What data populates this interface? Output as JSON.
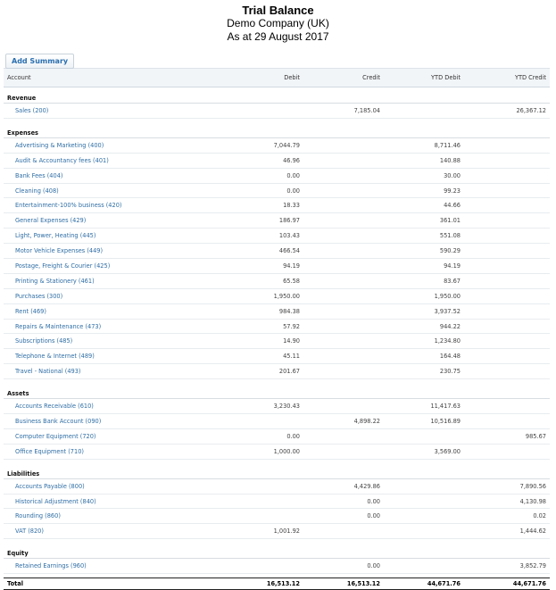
{
  "report": {
    "title": "Trial Balance",
    "company": "Demo Company (UK)",
    "date": "As at 29 August 2017"
  },
  "toolbar": {
    "add_summary_label": "Add Summary"
  },
  "columns": [
    "Account",
    "Debit",
    "Credit",
    "YTD Debit",
    "YTD Credit"
  ],
  "sections": [
    {
      "name": "Revenue",
      "rows": [
        {
          "account": "Sales (200)",
          "debit": "",
          "credit": "7,185.04",
          "ytd_debit": "",
          "ytd_credit": "26,367.12"
        }
      ]
    },
    {
      "name": "Expenses",
      "rows": [
        {
          "account": "Advertising & Marketing (400)",
          "debit": "7,044.79",
          "credit": "",
          "ytd_debit": "8,711.46",
          "ytd_credit": ""
        },
        {
          "account": "Audit & Accountancy fees (401)",
          "debit": "46.96",
          "credit": "",
          "ytd_debit": "140.88",
          "ytd_credit": ""
        },
        {
          "account": "Bank Fees (404)",
          "debit": "0.00",
          "credit": "",
          "ytd_debit": "30.00",
          "ytd_credit": ""
        },
        {
          "account": "Cleaning (408)",
          "debit": "0.00",
          "credit": "",
          "ytd_debit": "99.23",
          "ytd_credit": ""
        },
        {
          "account": "Entertainment-100% business (420)",
          "debit": "18.33",
          "credit": "",
          "ytd_debit": "44.66",
          "ytd_credit": ""
        },
        {
          "account": "General Expenses (429)",
          "debit": "186.97",
          "credit": "",
          "ytd_debit": "361.01",
          "ytd_credit": ""
        },
        {
          "account": "Light, Power, Heating (445)",
          "debit": "103.43",
          "credit": "",
          "ytd_debit": "551.08",
          "ytd_credit": ""
        },
        {
          "account": "Motor Vehicle Expenses (449)",
          "debit": "466.54",
          "credit": "",
          "ytd_debit": "590.29",
          "ytd_credit": ""
        },
        {
          "account": "Postage, Freight & Courier (425)",
          "debit": "94.19",
          "credit": "",
          "ytd_debit": "94.19",
          "ytd_credit": ""
        },
        {
          "account": "Printing & Stationery (461)",
          "debit": "65.58",
          "credit": "",
          "ytd_debit": "83.67",
          "ytd_credit": ""
        },
        {
          "account": "Purchases (300)",
          "debit": "1,950.00",
          "credit": "",
          "ytd_debit": "1,950.00",
          "ytd_credit": ""
        },
        {
          "account": "Rent (469)",
          "debit": "984.38",
          "credit": "",
          "ytd_debit": "3,937.52",
          "ytd_credit": ""
        },
        {
          "account": "Repairs & Maintenance (473)",
          "debit": "57.92",
          "credit": "",
          "ytd_debit": "944.22",
          "ytd_credit": ""
        },
        {
          "account": "Subscriptions (485)",
          "debit": "14.90",
          "credit": "",
          "ytd_debit": "1,234.80",
          "ytd_credit": ""
        },
        {
          "account": "Telephone & Internet (489)",
          "debit": "45.11",
          "credit": "",
          "ytd_debit": "164.48",
          "ytd_credit": ""
        },
        {
          "account": "Travel - National (493)",
          "debit": "201.67",
          "credit": "",
          "ytd_debit": "230.75",
          "ytd_credit": ""
        }
      ]
    },
    {
      "name": "Assets",
      "rows": [
        {
          "account": "Accounts Receivable (610)",
          "debit": "3,230.43",
          "credit": "",
          "ytd_debit": "11,417.63",
          "ytd_credit": ""
        },
        {
          "account": "Business Bank Account (090)",
          "debit": "",
          "credit": "4,898.22",
          "ytd_debit": "10,516.89",
          "ytd_credit": ""
        },
        {
          "account": "Computer Equipment (720)",
          "debit": "0.00",
          "credit": "",
          "ytd_debit": "",
          "ytd_credit": "985.67"
        },
        {
          "account": "Office Equipment (710)",
          "debit": "1,000.00",
          "credit": "",
          "ytd_debit": "3,569.00",
          "ytd_credit": ""
        }
      ]
    },
    {
      "name": "Liabilities",
      "rows": [
        {
          "account": "Accounts Payable (800)",
          "debit": "",
          "credit": "4,429.86",
          "ytd_debit": "",
          "ytd_credit": "7,890.56"
        },
        {
          "account": "Historical Adjustment (840)",
          "debit": "",
          "credit": "0.00",
          "ytd_debit": "",
          "ytd_credit": "4,130.98"
        },
        {
          "account": "Rounding (860)",
          "debit": "",
          "credit": "0.00",
          "ytd_debit": "",
          "ytd_credit": "0.02"
        },
        {
          "account": "VAT (820)",
          "debit": "1,001.92",
          "credit": "",
          "ytd_debit": "",
          "ytd_credit": "1,444.62"
        }
      ]
    },
    {
      "name": "Equity",
      "rows": [
        {
          "account": "Retained Earnings (960)",
          "debit": "",
          "credit": "0.00",
          "ytd_debit": "",
          "ytd_credit": "3,852.79"
        }
      ]
    }
  ],
  "total": {
    "label": "Total",
    "debit": "16,513.12",
    "credit": "16,513.12",
    "ytd_debit": "44,671.76",
    "ytd_credit": "44,671.76"
  }
}
